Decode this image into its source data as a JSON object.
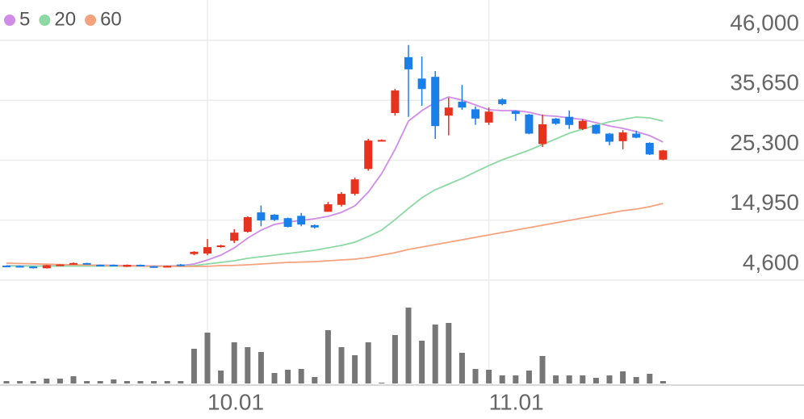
{
  "chart_data": {
    "type": "candlestick",
    "categories": [
      null,
      null,
      null,
      null,
      null,
      null,
      null,
      null,
      null,
      null,
      null,
      null,
      null,
      null,
      null,
      "10.01",
      null,
      null,
      null,
      null,
      null,
      null,
      null,
      null,
      null,
      null,
      null,
      null,
      null,
      null,
      null,
      null,
      null,
      null,
      null,
      null,
      "11.01",
      null,
      null,
      null,
      null,
      null,
      null,
      null,
      null,
      null,
      null,
      null,
      null,
      null
    ],
    "open": [
      7100,
      7050,
      6950,
      6650,
      7150,
      7300,
      7550,
      7250,
      7250,
      6900,
      7250,
      7000,
      6950,
      7300,
      9100,
      9200,
      10300,
      11400,
      12950,
      16300,
      15900,
      15300,
      15700,
      14100,
      16400,
      17600,
      19500,
      23800,
      28700,
      33450,
      43100,
      39400,
      39700,
      33000,
      35400,
      34100,
      31800,
      35800,
      33800,
      33200,
      28100,
      32500,
      32800,
      30700,
      31400,
      29900,
      28600,
      29900,
      28300,
      25400
    ],
    "high": [
      7150,
      7100,
      7000,
      7250,
      7350,
      7650,
      7600,
      7300,
      7300,
      7300,
      7300,
      7050,
      7100,
      7400,
      9600,
      11700,
      10700,
      13400,
      15600,
      17500,
      16000,
      15400,
      16200,
      14200,
      18100,
      19800,
      22300,
      29000,
      28900,
      37640,
      45200,
      43200,
      40700,
      36100,
      38300,
      34600,
      34400,
      36000,
      33900,
      33300,
      33200,
      32600,
      33900,
      32400,
      31500,
      30000,
      30500,
      30400,
      28400,
      27100
    ],
    "low": [
      6900,
      6950,
      6600,
      6600,
      7100,
      7250,
      7300,
      7100,
      7100,
      6850,
      6950,
      6900,
      6900,
      7000,
      8900,
      8900,
      10200,
      11000,
      12800,
      13900,
      14800,
      13700,
      13900,
      13500,
      16400,
      17300,
      19200,
      23500,
      28700,
      33000,
      32800,
      34700,
      29000,
      29600,
      34000,
      31400,
      31400,
      34800,
      32100,
      29800,
      27600,
      31400,
      30700,
      30500,
      29800,
      27900,
      27200,
      29100,
      26200,
      25300
    ],
    "close": [
      6950,
      6980,
      6650,
      7200,
      7300,
      7550,
      7350,
      7150,
      7150,
      7250,
      7000,
      6950,
      7050,
      7050,
      9500,
      10300,
      10600,
      12800,
      15470,
      14900,
      15000,
      13800,
      14200,
      13700,
      17700,
      19500,
      22000,
      28700,
      28800,
      37350,
      41000,
      37600,
      31200,
      34400,
      34400,
      32500,
      33700,
      35000,
      33300,
      29900,
      31500,
      31600,
      31400,
      32100,
      29900,
      28500,
      30100,
      29200,
      26300,
      27000
    ],
    "up_color": "#e8321e",
    "down_color": "#1a7fe8",
    "series": [
      {
        "name": "5",
        "color": "#cf8ce8",
        "values": [
          7100,
          7080,
          7050,
          7050,
          7100,
          7150,
          7200,
          7200,
          7150,
          7100,
          7100,
          7050,
          7050,
          7100,
          7390,
          8080,
          8920,
          10170,
          11850,
          13240,
          14220,
          14640,
          14910,
          15190,
          15610,
          16310,
          17420,
          19790,
          23000,
          27180,
          32060,
          33870,
          35270,
          36240,
          35680,
          34850,
          34010,
          33870,
          33870,
          33590,
          33040,
          32900,
          32620,
          32340,
          31780,
          31220,
          30810,
          30250,
          29550,
          28440
        ]
      },
      {
        "name": "20",
        "color": "#8cd9a4",
        "values": [
          7050,
          7040,
          7030,
          7020,
          7020,
          7020,
          7030,
          7030,
          7030,
          7020,
          7020,
          7010,
          7010,
          7020,
          7110,
          7390,
          7670,
          7940,
          8360,
          8640,
          8920,
          9200,
          9480,
          9760,
          10170,
          10590,
          11150,
          12130,
          13240,
          15050,
          17000,
          18820,
          20210,
          21190,
          22160,
          23280,
          24390,
          25370,
          26210,
          27040,
          28020,
          28990,
          29970,
          30670,
          31360,
          31920,
          32340,
          32760,
          32620,
          32060
        ]
      },
      {
        "name": "60",
        "color": "#f5a27e",
        "values": [
          7530,
          7480,
          7420,
          7360,
          7300,
          7250,
          7200,
          7150,
          7100,
          7060,
          7030,
          7000,
          6990,
          6980,
          6970,
          6990,
          7110,
          7140,
          7250,
          7390,
          7530,
          7670,
          7720,
          7800,
          7940,
          8080,
          8220,
          8500,
          8920,
          9340,
          9900,
          10310,
          10730,
          11150,
          11570,
          11990,
          12400,
          12820,
          13240,
          13660,
          14080,
          14500,
          14910,
          15330,
          15750,
          16170,
          16590,
          16870,
          17280,
          17840
        ]
      }
    ],
    "volume": {
      "color": "#777777",
      "axis": "y2",
      "values": [
        3,
        3,
        3,
        6,
        6,
        9,
        3,
        3,
        5,
        3,
        3,
        3,
        3,
        3,
        43,
        63,
        16,
        51,
        45,
        39,
        13,
        17,
        18,
        8,
        66,
        45,
        35,
        51,
        1,
        60,
        94,
        53,
        73,
        75,
        38,
        18,
        17,
        10,
        10,
        16,
        34,
        10,
        10,
        10,
        7,
        10,
        15,
        8,
        12,
        3
      ]
    },
    "ylim": [
      4600,
      46000
    ],
    "yticks": [
      {
        "value": 46000,
        "label": "46,000"
      },
      {
        "value": 35650,
        "label": "35,650"
      },
      {
        "value": 25300,
        "label": "25,300"
      },
      {
        "value": 14950,
        "label": "14,950"
      },
      {
        "value": 4600,
        "label": "4,600"
      }
    ],
    "y2lim": [
      0,
      100
    ],
    "grid": true
  }
}
